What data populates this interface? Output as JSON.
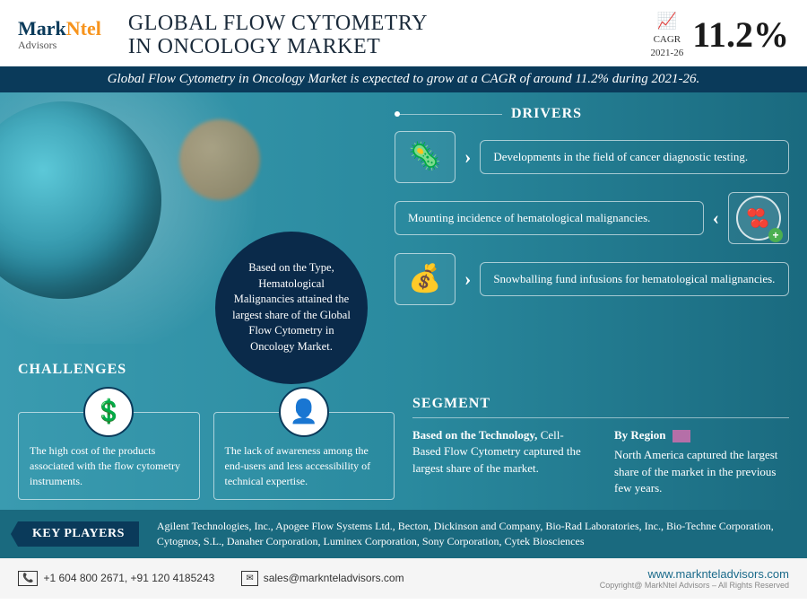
{
  "logo": {
    "part1": "Mark",
    "part2": "Ntel",
    "sub": "Advisors"
  },
  "header": {
    "title_line1": "GLOBAL FLOW CYTOMETRY",
    "title_line2": "IN ONCOLOGY MARKET",
    "cagr_label_top": "CAGR",
    "cagr_label_bottom": "2021-26",
    "cagr_value": "11.2%"
  },
  "banner": "Global Flow Cytometry in Oncology Market is expected to grow at a CAGR of around 11.2% during 2021-26.",
  "insight_circle": "Based on the Type, Hematological Malignancies attained the largest share of the Global Flow Cytometry in Oncology Market.",
  "drivers": {
    "title": "DRIVERS",
    "items": [
      "Developments in the field of cancer diagnostic testing.",
      "Mounting incidence of hematological malignancies.",
      "Snowballing fund infusions for hematological malignancies."
    ]
  },
  "challenges": {
    "title": "CHALLENGES",
    "items": [
      "The high cost of the products associated with the flow cytometry instruments.",
      "The lack of awareness among the end-users and less accessibility of technical expertise."
    ]
  },
  "segment": {
    "title": "SEGMENT",
    "tech_label": "Based on the Technology,",
    "tech_text": "Cell-Based Flow Cytometry captured the largest share of the market.",
    "region_label": "By Region",
    "region_text": "North America captured the largest share of the market in the previous few years."
  },
  "keyplayers": {
    "label": "KEY PLAYERS",
    "text": "Agilent Technologies, Inc., Apogee Flow Systems Ltd., Becton, Dickinson and Company, Bio-Rad Laboratories, Inc., Bio-Techne Corporation, Cytognos, S.L., Danaher Corporation, Luminex Corporation, Sony Corporation, Cytek Biosciences"
  },
  "footer": {
    "phone": "+1 604 800 2671, +91 120 4185243",
    "email": "sales@marknteladvisors.com",
    "url": "www.marknteladvisors.com",
    "copyright": "Copyright@ MarkNtel Advisors – All Rights Reserved"
  },
  "colors": {
    "navy": "#0a3a5a",
    "orange": "#f7941d",
    "teal_light": "#3a9bb0",
    "teal_dark": "#1a6a7f",
    "circle_bg": "#0a2a4a",
    "region_swatch": "#b56fa8"
  }
}
